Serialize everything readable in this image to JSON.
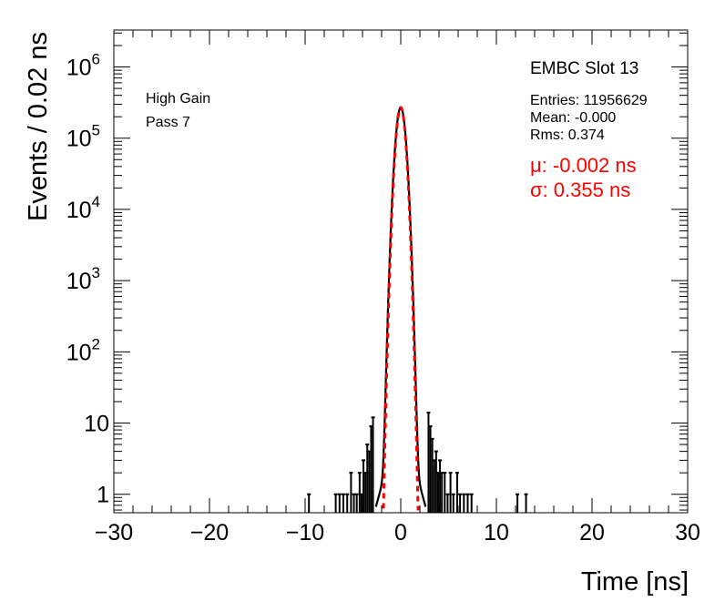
{
  "chart_data": {
    "type": "histogram",
    "xlabel": "Time [ns]",
    "ylabel": "Events / 0.02 ns",
    "xlim": [
      -30,
      30
    ],
    "ylim": [
      0.55,
      3300000
    ],
    "yscale": "log",
    "x_ticks": [
      "−30",
      "−20",
      "−10",
      "0",
      "10",
      "20",
      "30"
    ],
    "x_tick_values": [
      -30,
      -20,
      -10,
      0,
      10,
      20,
      30
    ],
    "y_ticks": [
      {
        "value": 1,
        "base": "1",
        "exp": ""
      },
      {
        "value": 10,
        "base": "10",
        "exp": ""
      },
      {
        "value": 100,
        "base": "10",
        "exp": "2"
      },
      {
        "value": 1000,
        "base": "10",
        "exp": "3"
      },
      {
        "value": 10000,
        "base": "10",
        "exp": "4"
      },
      {
        "value": 100000,
        "base": "10",
        "exp": "5"
      },
      {
        "value": 1000000,
        "base": "10",
        "exp": "6"
      }
    ],
    "annotations_left": [
      "High Gain",
      "Pass 7"
    ],
    "stats_title": "EMBC Slot 13",
    "stats": [
      "Entries: 11956629",
      "Mean: -0.000",
      "Rms: 0.374"
    ],
    "fit": {
      "mu_label": "μ: -0.002 ns",
      "sigma_label": "σ: 0.355 ns",
      "mu": -0.002,
      "sigma": 0.355,
      "amplitude": 270000,
      "color": "#ff0000",
      "style": "dashed"
    },
    "histogram": {
      "color": "#000000",
      "core": {
        "peak": 270000,
        "sigma": 0.37
      },
      "tails": [
        {
          "x": -9.6,
          "y": 1
        },
        {
          "x": -6.8,
          "y": 1
        },
        {
          "x": -6.4,
          "y": 1
        },
        {
          "x": -6.0,
          "y": 1
        },
        {
          "x": -5.6,
          "y": 1
        },
        {
          "x": -5.2,
          "y": 2
        },
        {
          "x": -4.9,
          "y": 1
        },
        {
          "x": -4.6,
          "y": 1
        },
        {
          "x": -4.3,
          "y": 2
        },
        {
          "x": -4.1,
          "y": 1
        },
        {
          "x": -3.9,
          "y": 3
        },
        {
          "x": -3.7,
          "y": 2
        },
        {
          "x": -3.5,
          "y": 5
        },
        {
          "x": -3.3,
          "y": 4
        },
        {
          "x": -3.1,
          "y": 9
        },
        {
          "x": -2.9,
          "y": 12
        },
        {
          "x": 2.9,
          "y": 14
        },
        {
          "x": 3.1,
          "y": 9
        },
        {
          "x": 3.3,
          "y": 6
        },
        {
          "x": 3.5,
          "y": 3
        },
        {
          "x": 3.7,
          "y": 4
        },
        {
          "x": 3.9,
          "y": 2
        },
        {
          "x": 4.1,
          "y": 3
        },
        {
          "x": 4.3,
          "y": 2
        },
        {
          "x": 4.6,
          "y": 2
        },
        {
          "x": 4.9,
          "y": 1
        },
        {
          "x": 5.2,
          "y": 2
        },
        {
          "x": 5.5,
          "y": 1
        },
        {
          "x": 5.9,
          "y": 2
        },
        {
          "x": 6.2,
          "y": 1
        },
        {
          "x": 6.6,
          "y": 1
        },
        {
          "x": 7.0,
          "y": 1
        },
        {
          "x": 7.4,
          "y": 1
        },
        {
          "x": 12.2,
          "y": 1
        },
        {
          "x": 13.1,
          "y": 1
        }
      ]
    }
  }
}
